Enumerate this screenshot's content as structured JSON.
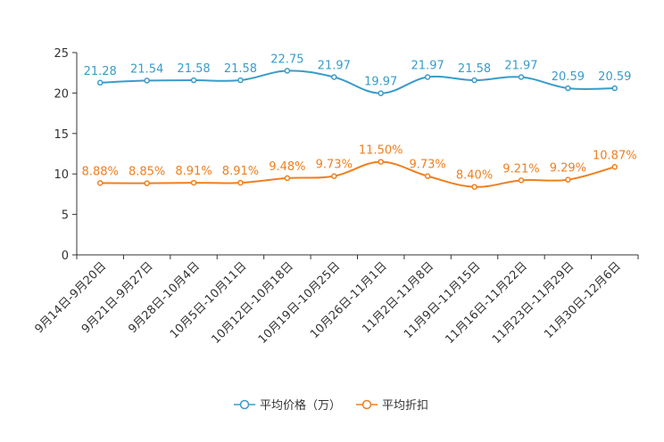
{
  "chart_data": {
    "type": "line",
    "title": "",
    "xlabel": "",
    "ylabel": "",
    "ylim": [
      0,
      25
    ],
    "yticks": [
      0,
      5,
      10,
      15,
      20,
      25
    ],
    "grid": false,
    "legend_position": "bottom-center",
    "categories": [
      "9月14日-9月20日",
      "9月21日-9月27日",
      "9月28日-10月4日",
      "10月5日-10月11日",
      "10月12日-10月18日",
      "10月19日-10月25日",
      "10月26日-11月1日",
      "11月2日-11月8日",
      "11月9日-11月15日",
      "11月16日-11月22日",
      "11月23日-11月29日",
      "11月30日-12月6日"
    ],
    "series": [
      {
        "name": "平均价格（万）",
        "color": "#3a9bc9",
        "values": [
          21.28,
          21.54,
          21.58,
          21.58,
          22.75,
          21.97,
          19.97,
          21.97,
          21.58,
          21.97,
          20.59,
          20.59
        ],
        "labels": [
          "21.28",
          "21.54",
          "21.58",
          "21.58",
          "22.75",
          "21.97",
          "19.97",
          "21.97",
          "21.58",
          "21.97",
          "20.59",
          "20.59"
        ]
      },
      {
        "name": "平均折扣",
        "color": "#f07f1e",
        "values": [
          8.88,
          8.85,
          8.91,
          8.91,
          9.48,
          9.73,
          11.5,
          9.73,
          8.4,
          9.21,
          9.29,
          10.87
        ],
        "labels": [
          "8.88%",
          "8.85%",
          "8.91%",
          "8.91%",
          "9.48%",
          "9.73%",
          "11.50%",
          "9.73%",
          "8.40%",
          "9.21%",
          "9.29%",
          "10.87%"
        ]
      }
    ]
  }
}
